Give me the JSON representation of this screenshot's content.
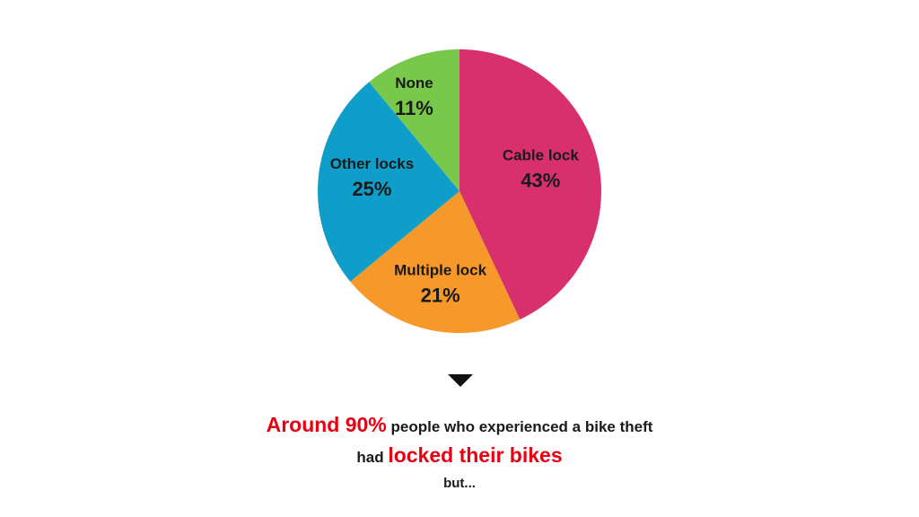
{
  "chart_data": {
    "type": "pie",
    "slices": [
      {
        "label": "Cable lock",
        "value": 43,
        "value_label": "43%",
        "color": "#d7306c"
      },
      {
        "label": "Multiple lock",
        "value": 21,
        "value_label": "21%",
        "color": "#f6982a"
      },
      {
        "label": "Other locks",
        "value": 25,
        "value_label": "25%",
        "color": "#0f9ec9"
      },
      {
        "label": "None",
        "value": 11,
        "value_label": "11%",
        "color": "#78c84b"
      }
    ],
    "start": "12 o'clock",
    "direction": "clockwise"
  },
  "caption": {
    "line1_highlight": "Around 90%",
    "line1_rest": " people who experienced a bike theft",
    "line2_prefix": "had ",
    "line2_highlight": "locked their bikes",
    "line3": "but...",
    "highlight_color": "#e60012"
  },
  "icons": {
    "arrow": "down-triangle-icon"
  }
}
